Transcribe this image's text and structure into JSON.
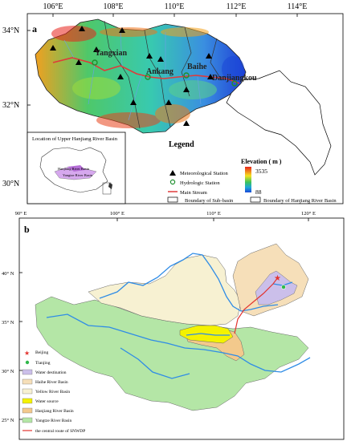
{
  "panel_a": {
    "label": "a",
    "lon_ticks": [
      "106°E",
      "108°E",
      "110°E",
      "112°E",
      "114°E"
    ],
    "lat_ticks": [
      "34°N",
      "32°N",
      "30°N"
    ],
    "places": [
      "Yangxian",
      "Ankang",
      "Baihe",
      "Danjiangkou"
    ],
    "inset_title": "Location of Upper Hanjiang River Basin",
    "inset_labels": [
      "Hanjiang River Basin",
      "Yangtze River Basin"
    ],
    "legend": {
      "title": "Legend",
      "items": [
        "Meteorological Station",
        "Hydrologic Station",
        "Main Stream",
        "Boundary of Sub-basin",
        "Boundary of Hanjiang River Basin"
      ],
      "elevation_title": "Elevation ( m )",
      "elev_max": "3535",
      "elev_min": "88"
    },
    "colors": {
      "high": "#e8231c",
      "mid": "#3cc35a",
      "low": "#1a47d8",
      "stream": "#e03a3a"
    }
  },
  "panel_b": {
    "label": "b",
    "lon_ticks": [
      "90° E",
      "100° E",
      "110° E",
      "120° E"
    ],
    "lat_ticks": [
      "40° N",
      "35° N",
      "30° N",
      "25° N"
    ],
    "legend": {
      "items": [
        "Beijing",
        "Tianjing",
        "Water destination",
        "Haihe River Basin",
        "Yellow River Basin",
        "Water source",
        "Hanjiang River Basin",
        "Yangtze River Basin",
        "the central route of SNWDP"
      ]
    },
    "colors": {
      "water_destination": "#cbbfea",
      "haihe": "#f6dfb9",
      "yellow": "#f7f1d2",
      "water_source": "#f4f200",
      "hanjiang": "#f3c98c",
      "yangtze": "#b4e6a6",
      "river": "#2f8ce6",
      "route": "#e3342f"
    }
  }
}
